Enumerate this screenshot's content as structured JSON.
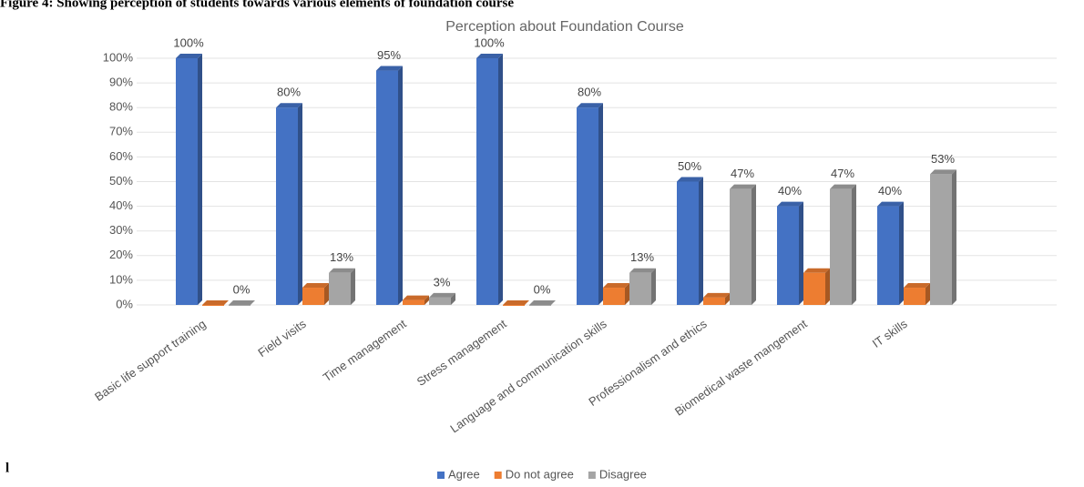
{
  "caption": "Figure 4: Showing perception of students towards various elements of foundation course",
  "fragment": "l",
  "chart_data": {
    "type": "bar",
    "title": "Perception about Foundation Course",
    "categories": [
      "Basic life support training",
      "Field visits",
      "Time management",
      "Stress management",
      "Language and communication skills",
      "Professionalism and ethics",
      "Biomedical waste mangement",
      "IT skills"
    ],
    "series": [
      {
        "name": "Agree",
        "color": "#4472c4",
        "values": [
          100,
          80,
          95,
          100,
          80,
          50,
          40,
          40
        ],
        "value_labels": [
          "100%",
          "80%",
          "95%",
          "100%",
          "80%",
          "50%",
          "40%",
          "40%"
        ]
      },
      {
        "name": "Do not agree",
        "color": "#ed7d31",
        "values": [
          0,
          7,
          2,
          0,
          7,
          3,
          13,
          7
        ]
      },
      {
        "name": "Disagree",
        "color": "#a5a5a5",
        "values": [
          0,
          13,
          3,
          0,
          13,
          47,
          47,
          53
        ],
        "value_labels": [
          "0%",
          "13%",
          "3%",
          "0%",
          "13%",
          "47%",
          "47%",
          "53%"
        ]
      }
    ],
    "ylim": [
      0,
      100
    ],
    "yticks": [
      {
        "value": 0,
        "label": "0%"
      },
      {
        "value": 10,
        "label": "10%"
      },
      {
        "value": 20,
        "label": "20%"
      },
      {
        "value": 30,
        "label": "30%"
      },
      {
        "value": 40,
        "label": "40%"
      },
      {
        "value": 50,
        "label": "50%"
      },
      {
        "value": 60,
        "label": "60%"
      },
      {
        "value": 70,
        "label": "70%"
      },
      {
        "value": 80,
        "label": "80%"
      },
      {
        "value": 90,
        "label": "90%"
      },
      {
        "value": 100,
        "label": "100%"
      }
    ],
    "grid": true,
    "legend": "bottom"
  }
}
